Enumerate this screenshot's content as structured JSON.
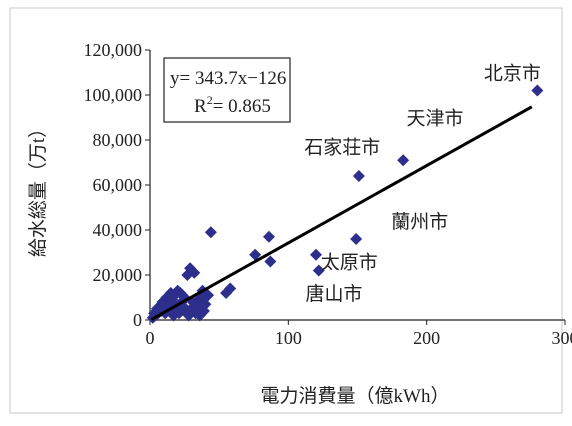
{
  "chart_data": {
    "type": "scatter",
    "xlabel": "電力消費量（億kWh）",
    "ylabel": "給水総量（万t）",
    "xlim": [
      0,
      300
    ],
    "ylim": [
      0,
      120000
    ],
    "x_ticks": [
      "0",
      "100",
      "200",
      "300"
    ],
    "y_ticks": [
      "0",
      "20,000",
      "40,000",
      "60,000",
      "80,000",
      "100,000",
      "120,000"
    ],
    "grid": false,
    "equation": {
      "line1": "y= 343.7x−126",
      "line2": "R",
      "line2_sup": "2",
      "line2_rest": "= 0.865"
    },
    "trendline": {
      "slope": 343.7,
      "intercept": -126
    },
    "annotations": [
      {
        "text": "北京市",
        "x": 262,
        "y": 107000
      },
      {
        "text": "天津市",
        "x": 206,
        "y": 87000
      },
      {
        "text": "石家荘市",
        "x": 139,
        "y": 74000
      },
      {
        "text": "蘭州市",
        "x": 195,
        "y": 41000
      },
      {
        "text": "太原市",
        "x": 144,
        "y": 23000
      },
      {
        "text": "唐山市",
        "x": 133,
        "y": 9000
      }
    ],
    "marker_color": "#2e2f8c",
    "line_color": "#000000",
    "points": [
      [
        280,
        102000
      ],
      [
        183,
        71000
      ],
      [
        151,
        64000
      ],
      [
        149,
        36000
      ],
      [
        120,
        29000
      ],
      [
        122,
        22000
      ],
      [
        44,
        39000
      ],
      [
        86,
        37000
      ],
      [
        76,
        29000
      ],
      [
        87,
        26000
      ],
      [
        58,
        14000
      ],
      [
        55,
        12000
      ],
      [
        29,
        23000
      ],
      [
        32,
        21000
      ],
      [
        27,
        20000
      ],
      [
        42,
        11000
      ],
      [
        38,
        13000
      ],
      [
        35,
        9000
      ],
      [
        31,
        8000
      ],
      [
        25,
        10000
      ],
      [
        22,
        12000
      ],
      [
        20,
        13000
      ],
      [
        18,
        11000
      ],
      [
        16,
        9000
      ],
      [
        15,
        12000
      ],
      [
        13,
        7000
      ],
      [
        12,
        10000
      ],
      [
        10,
        6000
      ],
      [
        9,
        8000
      ],
      [
        8,
        4000
      ],
      [
        7,
        6000
      ],
      [
        6,
        3000
      ],
      [
        5,
        5000
      ],
      [
        4,
        2000
      ],
      [
        3,
        3000
      ],
      [
        2,
        1000
      ],
      [
        11,
        3000
      ],
      [
        14,
        4000
      ],
      [
        17,
        2000
      ],
      [
        19,
        5000
      ],
      [
        21,
        3000
      ],
      [
        24,
        6000
      ],
      [
        26,
        4000
      ],
      [
        28,
        2000
      ],
      [
        30,
        5000
      ],
      [
        33,
        3000
      ],
      [
        36,
        2000
      ],
      [
        39,
        4000
      ],
      [
        34,
        6000
      ],
      [
        23,
        8000
      ],
      [
        37,
        10000
      ],
      [
        40,
        7000
      ],
      [
        18,
        6000
      ],
      [
        12,
        5000
      ]
    ]
  }
}
